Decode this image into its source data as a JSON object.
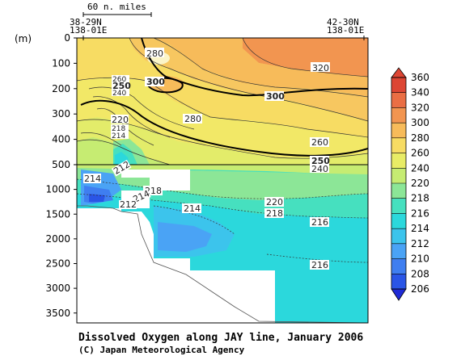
{
  "chart_data": {
    "type": "heatmap",
    "title": "Dissolved Oxygen along JAY line, January 2006",
    "credit": "(C) Japan Meteorological Agency",
    "y_unit": "(m)",
    "scale_label": "60 n. miles",
    "left_station": [
      "38-29N",
      "138-01E"
    ],
    "right_station": [
      "42-30N",
      "138-01E"
    ],
    "y_ticks_upper": [
      0,
      100,
      200,
      300,
      400,
      500
    ],
    "y_ticks_lower": [
      1000,
      1500,
      2000,
      2500,
      3000,
      3500
    ],
    "upper_range": [
      0,
      500
    ],
    "lower_range": [
      500,
      3700
    ],
    "colorbar_levels": [
      206,
      208,
      210,
      212,
      214,
      216,
      218,
      220,
      240,
      260,
      280,
      300,
      320,
      340,
      360
    ],
    "colorbar_colors": [
      "#1f2bd6",
      "#2a55e6",
      "#3f7ef0",
      "#4aa3f5",
      "#3cc4ec",
      "#2bd8dc",
      "#46e0bf",
      "#8ce697",
      "#c6ec72",
      "#e8ec66",
      "#f7dc63",
      "#f7bb5a",
      "#f29550",
      "#ea6e44",
      "#dd4634"
    ],
    "contour_labels_upper": [
      "280",
      "300",
      "300",
      "320",
      "250",
      "260",
      "240",
      "220",
      "218",
      "214",
      "280",
      "260",
      "250",
      "240"
    ],
    "contour_labels_lower": [
      "214",
      "212",
      "218",
      "214",
      "212",
      "220",
      "218",
      "216",
      "214",
      "216"
    ]
  }
}
